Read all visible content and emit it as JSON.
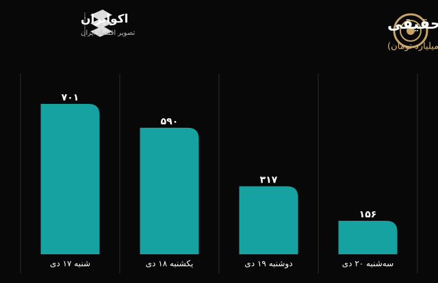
{
  "chart_data": {
    "type": "bar",
    "title": "روند ورود پول حقیقی",
    "subtitle": "(واحد: میلیارد تومان)",
    "brand": "اکوایران",
    "brand_tagline": "تصویر اقتصاد ایران",
    "categories": [
      "شنبه ۱۷ دی",
      "یکشنبه ۱۸ دی",
      "دوشنبه ۱۹ دی",
      "سه‌شنبه ۲۰ دی"
    ],
    "values": [
      701,
      590,
      317,
      156
    ],
    "value_labels": [
      "۷۰۱",
      "۵۹۰",
      "۳۱۷",
      "۱۵۶"
    ],
    "color": "#17a2a2"
  }
}
